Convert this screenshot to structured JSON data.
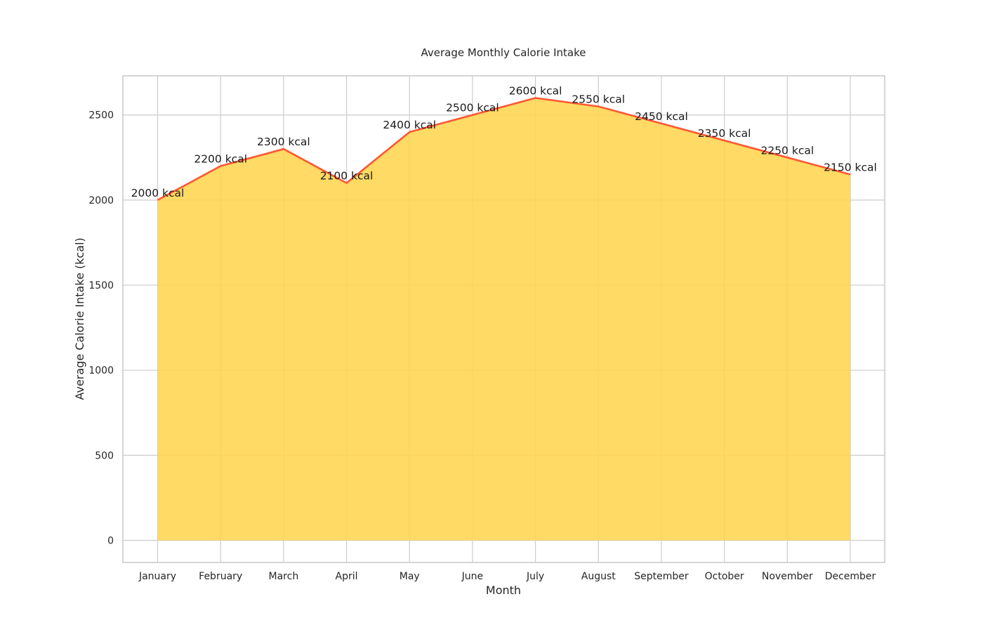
{
  "chart_data": {
    "type": "area",
    "title": "Average Monthly Calorie Intake",
    "xlabel": "Month",
    "ylabel": "Average Calorie Intake (kcal)",
    "categories": [
      "January",
      "February",
      "March",
      "April",
      "May",
      "June",
      "July",
      "August",
      "September",
      "October",
      "November",
      "December"
    ],
    "values": [
      2000,
      2200,
      2300,
      2100,
      2400,
      2500,
      2600,
      2550,
      2450,
      2350,
      2250,
      2150
    ],
    "data_labels": [
      "2000 kcal",
      "2200 kcal",
      "2300 kcal",
      "2100 kcal",
      "2400 kcal",
      "2500 kcal",
      "2600 kcal",
      "2550 kcal",
      "2450 kcal",
      "2350 kcal",
      "2250 kcal",
      "2150 kcal"
    ],
    "yticks": [
      0,
      500,
      1000,
      1500,
      2000,
      2500
    ],
    "ylim": [
      -130,
      2730
    ],
    "grid": true,
    "colors": {
      "fill": "#ffd54f",
      "line": "#ff5733"
    }
  }
}
